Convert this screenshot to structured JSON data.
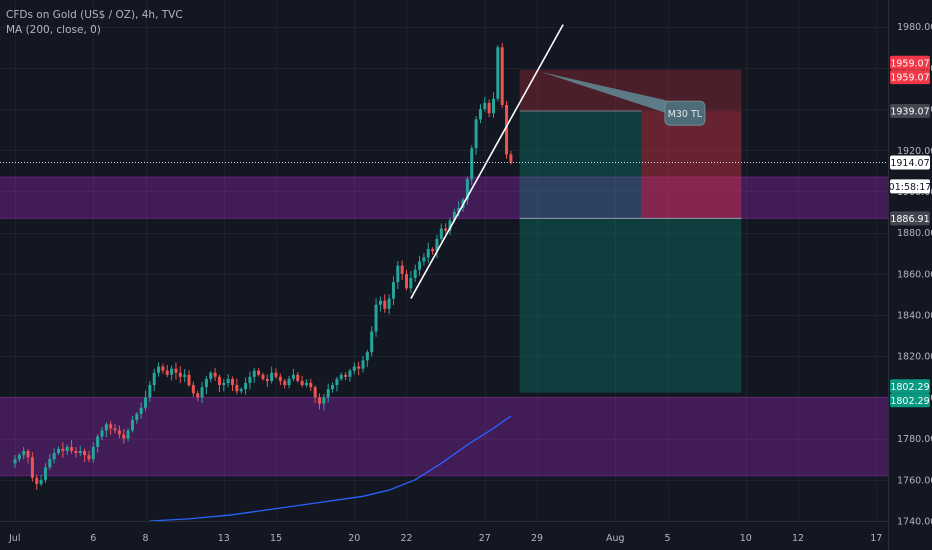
{
  "legend": {
    "title": "CFDs on Gold (US$ / OZ), 4h, TVC",
    "indicator": "MA (200, close, 0)"
  },
  "chart_data": {
    "type": "candlestick",
    "y_range": [
      1740,
      1992
    ],
    "y_ticks": [
      "1740.00",
      "1760.00",
      "1780.00",
      "1800.00",
      "1820.00",
      "1840.00",
      "1860.00",
      "1880.00",
      "1900.00",
      "1920.00",
      "1940.00",
      "1960.00",
      "1980.00"
    ],
    "x_ticks": [
      {
        "label": "Jul",
        "idx": 0
      },
      {
        "label": "6",
        "idx": 18
      },
      {
        "label": "8",
        "idx": 30
      },
      {
        "label": "13",
        "idx": 48
      },
      {
        "label": "15",
        "idx": 60
      },
      {
        "label": "20",
        "idx": 78
      },
      {
        "label": "22",
        "idx": 90
      },
      {
        "label": "27",
        "idx": 108
      },
      {
        "label": "29",
        "idx": 120
      },
      {
        "label": "Aug",
        "idx": 138
      },
      {
        "label": "5",
        "idx": 150
      },
      {
        "label": "10",
        "idx": 168
      },
      {
        "label": "12",
        "idx": 180
      },
      {
        "label": "17",
        "idx": 198
      }
    ],
    "closes": [
      1770,
      1772,
      1774,
      1771,
      1761,
      1758,
      1760,
      1766,
      1770,
      1773,
      1775,
      1774,
      1776,
      1774,
      1773,
      1774,
      1772,
      1770,
      1776,
      1781,
      1784,
      1787,
      1785,
      1784,
      1782,
      1780,
      1784,
      1789,
      1792,
      1795,
      1800,
      1806,
      1812,
      1815,
      1813,
      1811,
      1814,
      1812,
      1810,
      1811,
      1806,
      1802,
      1800,
      1805,
      1809,
      1812,
      1810,
      1806,
      1807,
      1809,
      1806,
      1803,
      1804,
      1807,
      1810,
      1813,
      1811,
      1809,
      1808,
      1812,
      1810,
      1808,
      1806,
      1809,
      1811,
      1808,
      1806,
      1807,
      1805,
      1800,
      1797,
      1800,
      1804,
      1806,
      1809,
      1811,
      1810,
      1813,
      1815,
      1814,
      1818,
      1822,
      1832,
      1845,
      1847,
      1843,
      1848,
      1856,
      1864,
      1860,
      1853,
      1858,
      1862,
      1866,
      1868,
      1872,
      1871,
      1877,
      1882,
      1881,
      1886,
      1890,
      1892,
      1896,
      1906,
      1921,
      1935,
      1940,
      1943,
      1938,
      1945,
      1970,
      1942,
      1918,
      1914
    ],
    "ma200": [
      [
        31,
        1740
      ],
      [
        40,
        1741
      ],
      [
        50,
        1743
      ],
      [
        60,
        1746
      ],
      [
        70,
        1749
      ],
      [
        80,
        1752
      ],
      [
        86,
        1755
      ],
      [
        92,
        1760
      ],
      [
        98,
        1768
      ],
      [
        104,
        1777
      ],
      [
        110,
        1785
      ],
      [
        114,
        1791
      ]
    ],
    "zones": [
      {
        "from": 1886.91,
        "to": 1907,
        "color": "#8e24aa",
        "opacity": 0.38
      },
      {
        "from": 1762,
        "to": 1800,
        "color": "#8e24aa",
        "opacity": 0.38
      }
    ],
    "current_price_line": 1914.07,
    "trendline": {
      "x1": 91,
      "y1": 1848,
      "x2": 126,
      "y2": 1981
    },
    "short_position": {
      "x_start": 116,
      "x_end": 167,
      "stop_loss": 1959.07,
      "entry": 1939.07,
      "target": 1802.29,
      "partial_target": 1886.91,
      "partial_x_end": 144
    },
    "annotation": {
      "text": "M30 TL",
      "anchor_idx": 121,
      "anchor_price": 1958,
      "box_idx": 154,
      "box_price": 1938
    },
    "price_labels": [
      {
        "text": "1959.07",
        "price": 1962.5,
        "bg": "#f23645",
        "fg": "#ffffff"
      },
      {
        "text": "1959.07",
        "price": 1955.5,
        "bg": "#f23645",
        "fg": "#ffffff"
      },
      {
        "text": "1939.07",
        "price": 1939.07,
        "bg": "#434651",
        "fg": "#ffffff"
      },
      {
        "text": "1914.07",
        "price": 1914.07,
        "bg": "#ffffff",
        "fg": "#131722"
      },
      {
        "text": "01:58:17",
        "price": 1902.5,
        "bg": "#ffffff",
        "fg": "#131722"
      },
      {
        "text": "1886.91",
        "price": 1886.91,
        "bg": "#434651",
        "fg": "#ffffff"
      },
      {
        "text": "1802.29",
        "price": 1805.4,
        "bg": "#089981",
        "fg": "#ffffff"
      },
      {
        "text": "1802.29",
        "price": 1798.6,
        "bg": "#089981",
        "fg": "#ffffff"
      }
    ],
    "colors": {
      "up": "#26a69a",
      "down": "#ef5350",
      "ma": "#2962ff",
      "grid": "#1e222d",
      "text": "#b2b5be"
    }
  }
}
